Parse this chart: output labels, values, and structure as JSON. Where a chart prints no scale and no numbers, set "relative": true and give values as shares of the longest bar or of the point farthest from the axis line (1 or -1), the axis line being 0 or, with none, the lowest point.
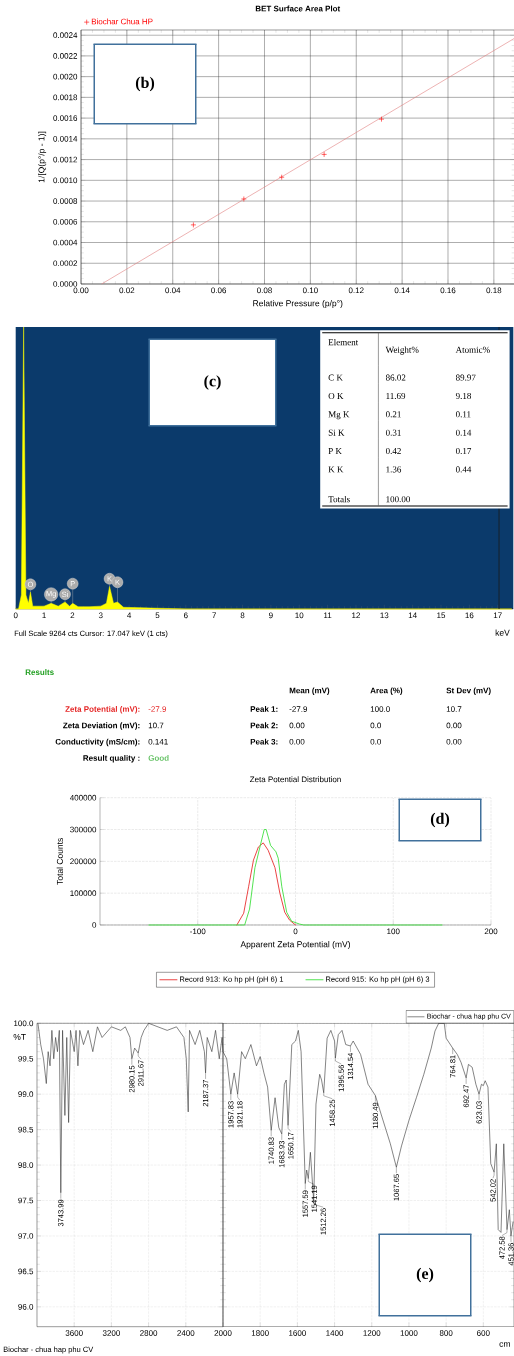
{
  "chart_data": [
    {
      "type": "scatter",
      "title": "BET Surface Area Plot",
      "xlabel": "Relative Pressure (p/p°)",
      "ylabel": "1/[Q(p°/p - 1)]",
      "grid": true,
      "legend": "top left",
      "series": [
        {
          "name": "Biochar Chua HP",
          "type": "scatter",
          "marker": "cross",
          "color": "#ff0000",
          "x": [
            0.049,
            0.071,
            0.0875,
            0.106,
            0.131
          ],
          "values": [
            0.00057,
            0.00082,
            0.00103,
            0.00125,
            0.00159
          ]
        },
        {
          "type": "line",
          "color": "#e08080",
          "x": [
            0.009,
            0.189
          ],
          "values": [
            0,
            0.00237
          ]
        }
      ],
      "xlim": [
        0,
        0.189
      ],
      "ylim": [
        0,
        0.00245
      ],
      "xticks": [
        {
          "value": 0,
          "label": "0.00"
        },
        {
          "value": 0.02,
          "label": "0.02"
        },
        {
          "value": 0.04,
          "label": "0.04"
        },
        {
          "value": 0.06,
          "label": "0.06"
        },
        {
          "value": 0.08,
          "label": "0.08"
        },
        {
          "value": 0.1,
          "label": "0.10"
        },
        {
          "value": 0.12,
          "label": "0.12"
        },
        {
          "value": 0.14,
          "label": "0.14"
        },
        {
          "value": 0.16,
          "label": "0.16"
        },
        {
          "value": 0.18,
          "label": "0.18"
        }
      ],
      "yticks": [
        {
          "value": 0,
          "label": "0.0000"
        },
        {
          "value": 0.0002,
          "label": "0.0002"
        },
        {
          "value": 0.0004,
          "label": "0.0004"
        },
        {
          "value": 0.0006,
          "label": "0.0006"
        },
        {
          "value": 0.0008,
          "label": "0.0008"
        },
        {
          "value": 0.001,
          "label": "0.0010"
        },
        {
          "value": 0.0012,
          "label": "0.0012"
        },
        {
          "value": 0.0014,
          "label": "0.0014"
        },
        {
          "value": 0.0016,
          "label": "0.0016"
        },
        {
          "value": 0.0018,
          "label": "0.0018"
        },
        {
          "value": 0.002,
          "label": "0.0020"
        },
        {
          "value": 0.0022,
          "label": "0.0022"
        },
        {
          "value": 0.0024,
          "label": "0.0024"
        }
      ],
      "annotations": [
        "(b)"
      ]
    },
    {
      "type": "area",
      "relative": true,
      "xlabel": "keV",
      "color": "#ffff00",
      "x": [
        0,
        0.1,
        0.2,
        0.28,
        0.36,
        0.45,
        0.52,
        0.6,
        0.8,
        1.0,
        1.25,
        1.5,
        1.74,
        1.9,
        2.01,
        2.2,
        2.6,
        3.0,
        3.2,
        3.31,
        3.45,
        3.59,
        3.8,
        4.5,
        5.3,
        6,
        8,
        10,
        12,
        14,
        17.5
      ],
      "values": [
        0,
        0,
        0.05,
        1,
        0.05,
        0.02,
        0.06,
        0.01,
        0.01,
        0.01,
        0.02,
        0.01,
        0.025,
        0.01,
        0.02,
        0.008,
        0.008,
        0.01,
        0.02,
        0.08,
        0.02,
        0.025,
        0.006,
        0.004,
        0.002,
        0,
        0,
        0,
        0,
        0,
        0
      ],
      "xlim": [
        0,
        17.55
      ],
      "xticks": [
        0,
        1,
        2,
        3,
        4,
        5,
        6,
        7,
        8,
        9,
        10,
        11,
        12,
        13,
        14,
        15,
        16,
        17
      ],
      "ref_lines": [
        {
          "axis": "x",
          "value": 17.047,
          "color": "#1a1a1a"
        }
      ],
      "annotations": [
        {
          "text": "O",
          "x": 0.52,
          "y": 0.06
        },
        {
          "text": "Mg",
          "x": 1.25,
          "y": 0.02
        },
        {
          "text": "Si",
          "x": 1.74,
          "y": 0.025
        },
        {
          "text": "P",
          "x": 2.01,
          "y": 0.02
        },
        {
          "text": "K",
          "x": 3.31,
          "y": 0.08
        },
        {
          "text": "K",
          "x": 3.59,
          "y": 0.025
        },
        "(c)",
        "Full Scale 9264 cts  Cursor: 17.047 keV (1 cts)"
      ]
    },
    {
      "type": "other",
      "annotations": [
        "Element",
        "Weight%",
        "Atomic%",
        "C K",
        "86.02",
        "89.97",
        "O K",
        "11.69",
        "9.18",
        "Mg K",
        "0.21",
        "0.11",
        "Si K",
        "0.31",
        "0.14",
        "P K",
        "0.42",
        "0.17",
        "K K",
        "1.36",
        "0.44",
        "Totals",
        "100.00"
      ]
    },
    {
      "type": "other",
      "annotations": [
        "Results",
        "Mean (mV)",
        "Area (%)",
        "St Dev (mV)",
        "Zeta Potential (mV):",
        "-27.9",
        "Peak 1:",
        "-27.9",
        "100.0",
        "10.7",
        "Zeta Deviation (mV):",
        "10.7",
        "Peak 2:",
        "0.00",
        "0.0",
        "0.00",
        "Conductivity (mS/cm):",
        "0.141",
        "Peak 3:",
        "0.00",
        "0.0",
        "0.00",
        "Result quality :",
        "Good"
      ]
    },
    {
      "type": "line",
      "title": "Zeta Potential Distribution",
      "xlabel": "Apparent Zeta Potential (mV)",
      "ylabel": "Total Counts",
      "grid": true,
      "legend": "bottom",
      "series": [
        {
          "name": "Record 913: Ko hp pH (pH 6) 1",
          "color": "#e83030",
          "x": [
            -60,
            -53,
            -48,
            -43,
            -38,
            -33,
            -28,
            -21,
            -16,
            -11,
            -6,
            0
          ],
          "values": [
            0,
            37000,
            120000,
            204000,
            245000,
            258000,
            235000,
            180000,
            100000,
            40000,
            15000,
            0
          ]
        },
        {
          "name": "Record 915: Ko hp pH (pH 6) 3",
          "color": "#40e040",
          "x": [
            -150,
            -52,
            -47,
            -41.5,
            -36,
            -32,
            -30,
            -25.5,
            -20,
            -17.7,
            -14,
            -9,
            -4,
            4,
            8.5,
            150
          ],
          "values": [
            0,
            0,
            50000,
            180000,
            250000,
            300000,
            300000,
            250000,
            230000,
            210000,
            120000,
            40000,
            12000,
            3000,
            0,
            0
          ]
        }
      ],
      "xlim": [
        -200,
        200
      ],
      "ylim": [
        0,
        400000
      ],
      "xticks": [
        -100,
        0,
        100,
        200
      ],
      "yticks": [
        0,
        100000,
        200000,
        300000,
        400000
      ],
      "annotations": [
        "(d)"
      ]
    },
    {
      "type": "line",
      "ylabel": "%T",
      "grid": true,
      "x": [
        3990,
        3960,
        3930,
        3900,
        3880,
        3860,
        3840,
        3820,
        3800,
        3780,
        3760,
        3743.99,
        3725,
        3700,
        3680,
        3660,
        3640,
        3600,
        3580,
        3560,
        3540,
        3500,
        3450,
        3400,
        3350,
        3300,
        3200,
        3100,
        3050,
        3000,
        2980.15,
        2950,
        2911.67,
        2880,
        2850,
        2800,
        2700,
        2600,
        2500,
        2420,
        2395,
        2374,
        2360,
        2300,
        2250,
        2200,
        2187.37,
        2170,
        2120,
        2080,
        2040,
        2010,
        2000
      ],
      "series": [
        {
          "color": "#333333",
          "values": [
            100.0,
            99.7,
            99.5,
            99.15,
            99.6,
            99.4,
            99.9,
            99.5,
            99.8,
            99.6,
            99.9,
            97.61,
            99.9,
            98.7,
            99.8,
            98.6,
            99.9,
            99.6,
            99.9,
            99.4,
            99.9,
            99.7,
            99.9,
            99.6,
            99.95,
            99.8,
            99.95,
            99.9,
            99.95,
            99.8,
            99.5,
            99.65,
            99.58,
            99.8,
            99.9,
            100.0,
            99.95,
            99.9,
            99.95,
            99.8,
            99.5,
            98.75,
            99.9,
            99.7,
            99.9,
            99.6,
            99.3,
            99.8,
            99.6,
            99.9,
            99.5,
            99.8,
            99.6
          ]
        }
      ],
      "xlim": [
        4000,
        2000
      ],
      "ylim": [
        95.72,
        100.0
      ],
      "xticks": [
        3600,
        3200,
        2800,
        2400,
        2000
      ],
      "yticks": [
        {
          "value": 96,
          "label": "96.0"
        },
        {
          "value": 96.5,
          "label": "96.5"
        },
        {
          "value": 97,
          "label": "97.0"
        },
        {
          "value": 97.5,
          "label": "97.5"
        },
        {
          "value": 98,
          "label": "98.0"
        },
        {
          "value": 98.5,
          "label": "98.5"
        },
        {
          "value": 99,
          "label": "99.0"
        },
        {
          "value": 99.5,
          "label": "99.5"
        },
        {
          "value": 100,
          "label": "100.0"
        }
      ],
      "annotations": [
        {
          "text": "3743.99",
          "x": 3743.99,
          "y": 97.61
        },
        {
          "text": "2980.15",
          "x": 2980.15,
          "y": 99.5
        },
        {
          "text": "2911.67",
          "x": 2911.67,
          "y": 99.58
        },
        {
          "text": "2187.37",
          "x": 2187.37,
          "y": 99.3
        },
        "Biochar - chua hap phu CV"
      ]
    },
    {
      "type": "line",
      "xlabel": "cm",
      "grid": true,
      "legend": "top right",
      "tick_labels": "x",
      "x": [
        2000,
        1980,
        1957.83,
        1940,
        1921.18,
        1900,
        1880,
        1850,
        1820,
        1800,
        1780,
        1760,
        1740.83,
        1720,
        1700,
        1683.93,
        1670,
        1660,
        1650.17,
        1630,
        1610,
        1595,
        1580,
        1557.59,
        1550,
        1541.19,
        1530,
        1512.26,
        1500,
        1480,
        1470,
        1458.25,
        1440,
        1420,
        1400,
        1395.56,
        1380,
        1360,
        1340,
        1314.54,
        1300,
        1260,
        1220,
        1180.49,
        1150,
        1100,
        1067.65,
        1040,
        1000,
        960,
        920,
        880,
        860,
        840,
        810,
        800,
        764.81,
        740,
        720,
        692.47,
        680,
        660,
        640,
        623.03,
        610,
        600,
        590,
        575,
        560,
        542.02,
        530,
        520,
        505,
        490,
        472.58,
        460,
        451.36,
        440
      ],
      "series": [
        {
          "name": "Biochar - chua hap phu CV",
          "color": "#333333",
          "values": [
            99.6,
            99.5,
            99.0,
            99.3,
            99.0,
            99.6,
            99.5,
            99.7,
            99.4,
            99.53,
            99.3,
            99.1,
            98.49,
            98.95,
            98.53,
            98.44,
            99.14,
            99.2,
            98.56,
            99.7,
            99.75,
            99.9,
            99.6,
            97.74,
            97.93,
            97.81,
            98.18,
            97.49,
            98.86,
            99.28,
            99.2,
            99.02,
            99.79,
            99.9,
            99.75,
            99.51,
            99.84,
            99.9,
            99.7,
            99.68,
            99.75,
            99.56,
            99.14,
            98.98,
            98.72,
            98.3,
            97.97,
            98.27,
            98.63,
            98.95,
            99.28,
            99.65,
            99.89,
            100.0,
            100.0,
            99.79,
            99.65,
            99.56,
            99.45,
            99.23,
            99.42,
            99.38,
            99.14,
            99.0,
            99.14,
            99.12,
            99.19,
            99.1,
            98.02,
            97.9,
            98.3,
            97.09,
            97.05,
            98.3,
            97.09,
            97.37,
            97.0,
            97.2
          ]
        }
      ],
      "xlim": [
        2000,
        435
      ],
      "ylim": [
        95.72,
        100.0
      ],
      "xticks": [
        1800,
        1600,
        1400,
        1200,
        1000,
        800,
        600
      ],
      "yticks": [
        {
          "value": 96,
          "label": null
        },
        {
          "value": 96.5,
          "label": null
        },
        {
          "value": 97,
          "label": null
        },
        {
          "value": 97.5,
          "label": null
        },
        {
          "value": 98,
          "label": null
        },
        {
          "value": 98.5,
          "label": null
        },
        {
          "value": 99,
          "label": null
        },
        {
          "value": 99.5,
          "label": null
        },
        {
          "value": 100,
          "label": null
        }
      ],
      "annotations": [
        {
          "text": "1957.83",
          "x": 1957.83,
          "y": 99.0
        },
        {
          "text": "1921.18",
          "x": 1921.18,
          "y": 99.0
        },
        {
          "text": "1740.83",
          "x": 1740.83,
          "y": 98.49
        },
        {
          "text": "1683.93",
          "x": 1683.93,
          "y": 98.44
        },
        {
          "text": "1650.17",
          "x": 1650.17,
          "y": 98.56
        },
        {
          "text": "1557.59",
          "x": 1557.59,
          "y": 97.74
        },
        {
          "text": "1541.19",
          "x": 1541.19,
          "y": 97.81
        },
        {
          "text": "1512.26",
          "x": 1512.26,
          "y": 97.49
        },
        {
          "text": "1458.25",
          "x": 1458.25,
          "y": 99.02
        },
        {
          "text": "1395.56",
          "x": 1395.56,
          "y": 99.51
        },
        {
          "text": "1314.54",
          "x": 1314.54,
          "y": 99.68
        },
        {
          "text": "1180.49",
          "x": 1180.49,
          "y": 98.98
        },
        {
          "text": "1067.65",
          "x": 1067.65,
          "y": 97.97
        },
        {
          "text": "764.81",
          "x": 764.81,
          "y": 99.65
        },
        {
          "text": "692.47",
          "x": 692.47,
          "y": 99.23
        },
        {
          "text": "623.03",
          "x": 623.03,
          "y": 99.0
        },
        {
          "text": "542.02",
          "x": 542.02,
          "y": 97.9
        },
        {
          "text": "472.58",
          "x": 472.58,
          "y": 97.09
        },
        {
          "text": "451.36",
          "x": 451.36,
          "y": 97.0
        },
        "(e)"
      ]
    }
  ]
}
